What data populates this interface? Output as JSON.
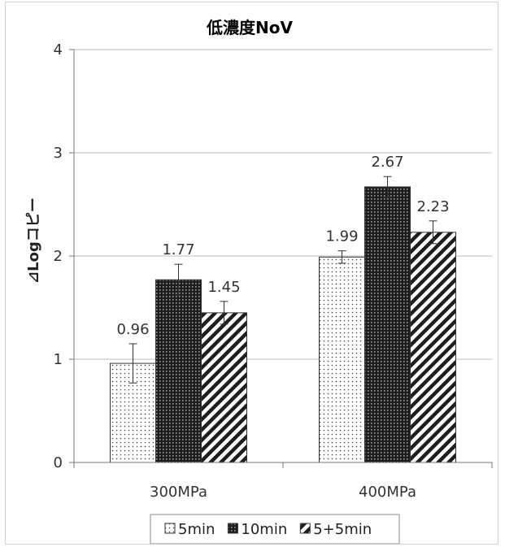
{
  "chart_data": {
    "type": "bar",
    "title": "低濃度NoV",
    "xlabel": "",
    "ylabel": "⊿Logコピー",
    "ylim": [
      0,
      4
    ],
    "yticks": [
      0,
      1,
      2,
      3,
      4
    ],
    "grid": true,
    "legend_position": "bottom",
    "categories": [
      "300MPa",
      "400MPa"
    ],
    "series": [
      {
        "name": "5min",
        "pattern": "dots",
        "values": [
          0.96,
          1.99
        ],
        "errors": [
          0.19,
          0.06
        ]
      },
      {
        "name": "10min",
        "pattern": "grid",
        "values": [
          1.77,
          2.67
        ],
        "errors": [
          0.15,
          0.1
        ]
      },
      {
        "name": "5+5min",
        "pattern": "stripes",
        "values": [
          1.45,
          2.23
        ],
        "errors": [
          0.11,
          0.11
        ]
      }
    ]
  }
}
